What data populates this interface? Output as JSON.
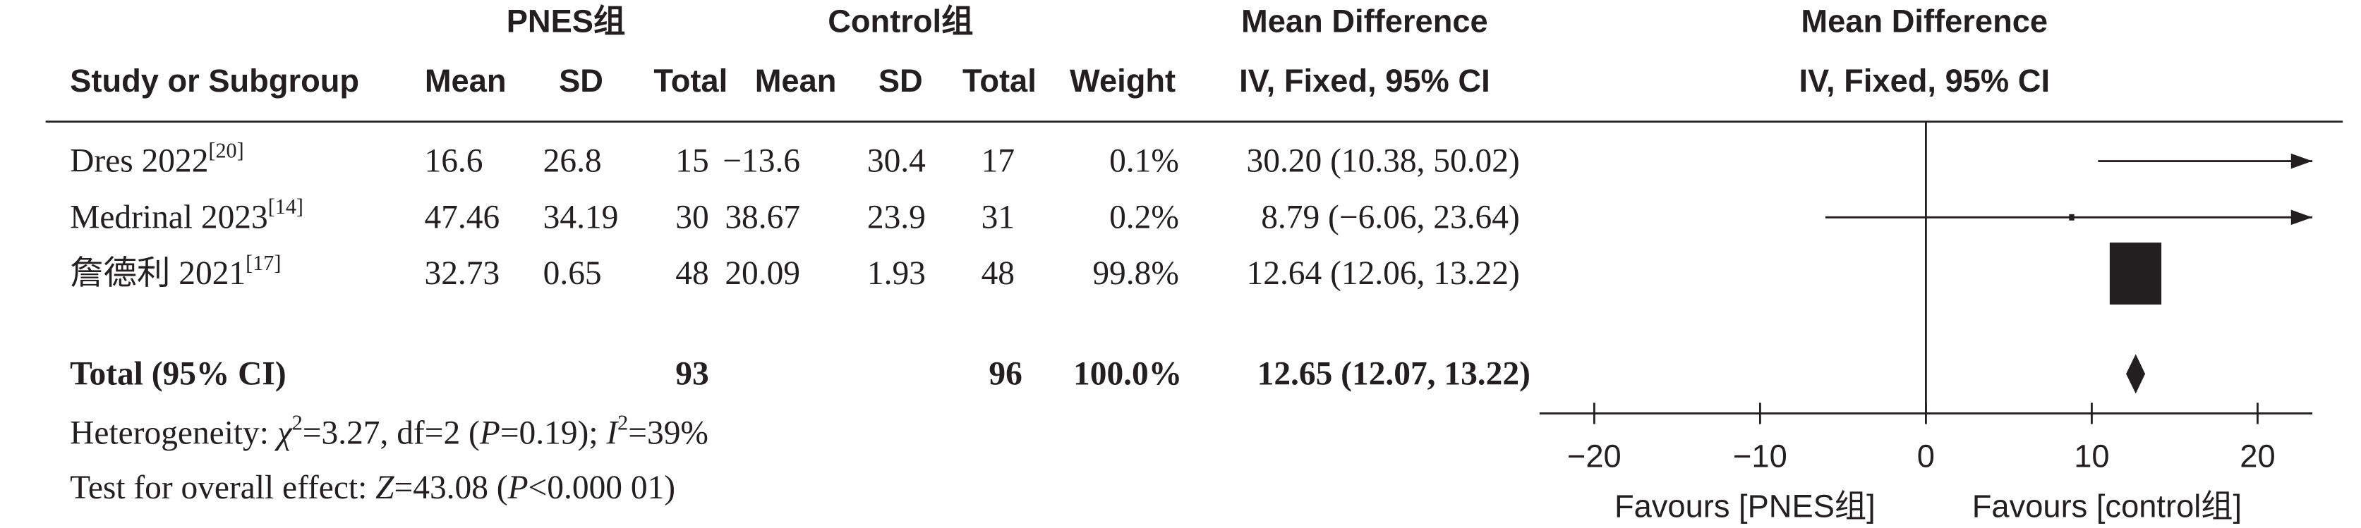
{
  "chart_data": {
    "type": "forest",
    "group_headers": [
      "PNES组",
      "Control组"
    ],
    "columns": [
      "Study or Subgroup",
      "Mean",
      "SD",
      "Total",
      "Mean",
      "SD",
      "Total",
      "Weight",
      "IV, Fixed, 95% CI"
    ],
    "effect_header": "Mean Difference",
    "plot_header": [
      "Mean Difference",
      "IV, Fixed, 95% CI"
    ],
    "rows": [
      {
        "study": "Dres 2022",
        "ref": "[20]",
        "cells": [
          "16.6",
          "26.8",
          "15",
          "−13.6",
          "30.4",
          "17",
          "0.1%",
          "30.20 (10.38, 50.02)"
        ]
      },
      {
        "study": "Medrinal 2023",
        "ref": "[14]",
        "cells": [
          "47.46",
          "34.19",
          "30",
          "38.67",
          "23.9",
          "31",
          "0.2%",
          "8.79 (−6.06, 23.64)"
        ]
      },
      {
        "study": "詹德利 2021",
        "ref": "[17]",
        "cells": [
          "32.73",
          "0.65",
          "48",
          "20.09",
          "1.93",
          "48",
          "99.8%",
          "12.64 (12.06, 13.22)"
        ]
      }
    ],
    "total": {
      "label": "Total (95% CI)",
      "total1": "93",
      "total2": "96",
      "weight": "100.0%",
      "ci": "12.65 (12.07, 13.22)"
    },
    "estimates": [
      30.2,
      8.79,
      12.64
    ],
    "ci_low": [
      10.38,
      -6.06,
      12.06
    ],
    "ci_high": [
      50.02,
      23.64,
      13.22
    ],
    "weights": [
      0.1,
      0.2,
      99.8
    ],
    "pooled": {
      "estimate": 12.65,
      "ci_low": 12.07,
      "ci_high": 13.22
    },
    "heterogeneity": [
      "Heterogeneity: ",
      "χ",
      "2",
      "=3.27, df=2 (",
      "P",
      "=0.19); ",
      "I",
      "2",
      "=39%"
    ],
    "overall": [
      "Test for overall effect: ",
      "Z",
      "=43.08 (",
      "P",
      "<0.000 01)"
    ],
    "xlim": [
      -23.3,
      23.3
    ],
    "xticks": [
      {
        "value": -20,
        "label": "−20"
      },
      {
        "value": -10,
        "label": "−10"
      },
      0,
      10,
      20
    ],
    "x_labels": [
      "Favours [PNES组]",
      "Favours [control组]"
    ],
    "color": "#231f20"
  }
}
